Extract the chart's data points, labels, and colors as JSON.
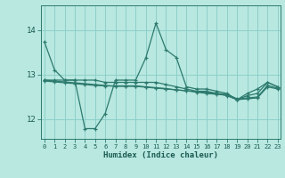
{
  "title": "",
  "xlabel": "Humidex (Indice chaleur)",
  "ylabel": "",
  "background_color": "#b8e8e0",
  "grid_color": "#8ecfca",
  "line_color": "#2d7a6e",
  "x_ticks": [
    0,
    1,
    2,
    3,
    4,
    5,
    6,
    7,
    8,
    9,
    10,
    11,
    12,
    13,
    14,
    15,
    16,
    17,
    18,
    19,
    20,
    21,
    22,
    23
  ],
  "y_ticks": [
    12,
    13,
    14
  ],
  "xlim": [
    -0.3,
    23.3
  ],
  "ylim": [
    11.55,
    14.55
  ],
  "lines": [
    {
      "x": [
        0,
        1,
        2,
        3,
        4,
        5,
        6,
        7,
        8,
        9,
        10,
        11,
        12,
        13,
        14,
        15,
        16,
        17,
        18,
        19,
        20,
        21,
        22,
        23
      ],
      "y": [
        13.73,
        13.1,
        12.87,
        12.87,
        11.78,
        11.78,
        12.12,
        12.87,
        12.87,
        12.87,
        13.37,
        14.15,
        13.55,
        13.38,
        12.72,
        12.67,
        12.67,
        12.62,
        12.57,
        12.43,
        12.57,
        12.67,
        12.82,
        12.72
      ]
    },
    {
      "x": [
        0,
        1,
        2,
        3,
        4,
        5,
        6,
        7,
        8,
        9,
        10,
        11,
        12,
        13,
        14,
        15,
        16,
        17,
        18,
        19,
        20,
        21,
        22,
        23
      ],
      "y": [
        12.87,
        12.87,
        12.87,
        12.87,
        12.87,
        12.87,
        12.82,
        12.82,
        12.82,
        12.82,
        12.82,
        12.82,
        12.77,
        12.72,
        12.67,
        12.62,
        12.62,
        12.57,
        12.52,
        12.43,
        12.52,
        12.57,
        12.82,
        12.72
      ]
    },
    {
      "x": [
        0,
        1,
        2,
        3,
        4,
        5,
        6,
        7,
        8,
        9,
        10,
        11,
        12,
        13,
        14,
        15,
        16,
        17,
        18,
        19,
        20,
        21,
        22,
        23
      ],
      "y": [
        12.87,
        12.85,
        12.83,
        12.81,
        12.79,
        12.77,
        12.75,
        12.73,
        12.73,
        12.73,
        12.71,
        12.69,
        12.67,
        12.65,
        12.63,
        12.61,
        12.59,
        12.57,
        12.55,
        12.45,
        12.47,
        12.49,
        12.75,
        12.69
      ]
    },
    {
      "x": [
        0,
        1,
        2,
        3,
        4,
        5,
        6,
        7,
        8,
        9,
        10,
        11,
        12,
        13,
        14,
        15,
        16,
        17,
        18,
        19,
        20,
        21,
        22,
        23
      ],
      "y": [
        12.85,
        12.83,
        12.81,
        12.79,
        12.77,
        12.75,
        12.74,
        12.74,
        12.74,
        12.74,
        12.72,
        12.7,
        12.68,
        12.65,
        12.63,
        12.6,
        12.57,
        12.55,
        12.53,
        12.43,
        12.45,
        12.47,
        12.72,
        12.67
      ]
    }
  ]
}
